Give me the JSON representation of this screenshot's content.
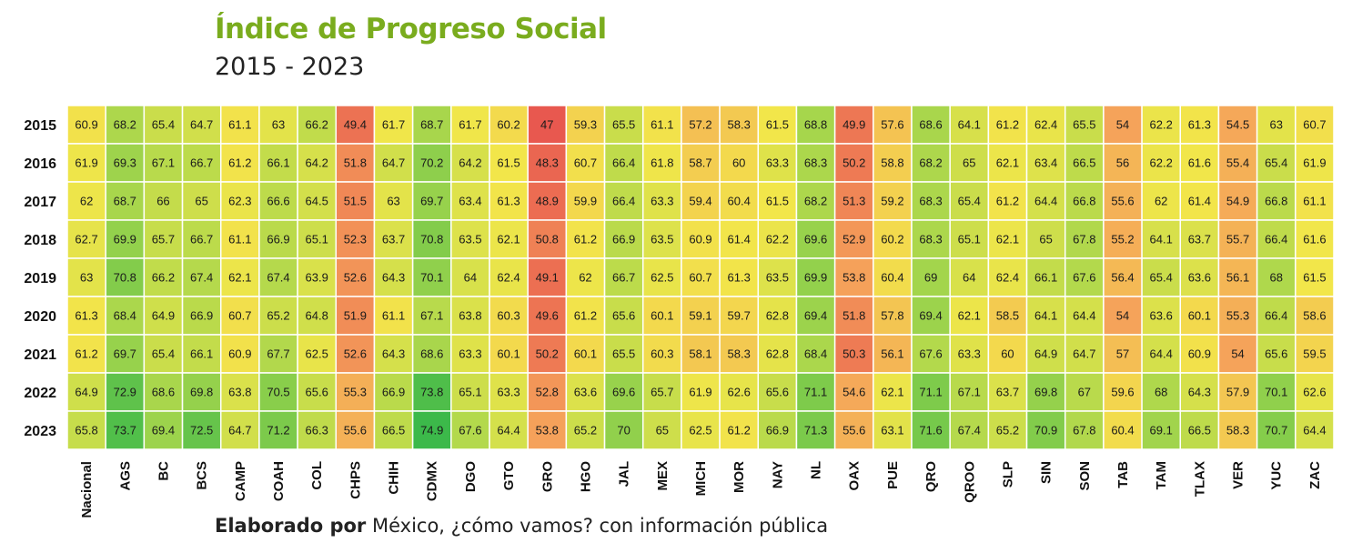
{
  "header": {
    "title": "Índice de Progreso Social",
    "subtitle": "2015 - 2023"
  },
  "footer": {
    "source_bold": "Elaborado por",
    "source_text": " México, ¿cómo vamos? con información pública"
  },
  "chart_data": {
    "type": "heatmap",
    "title": "Índice de Progreso Social",
    "subtitle": "2015 - 2023",
    "rows": [
      "2015",
      "2016",
      "2017",
      "2018",
      "2019",
      "2020",
      "2021",
      "2022",
      "2023"
    ],
    "columns": [
      "Nacional",
      "AGS",
      "BC",
      "BCS",
      "CAMP",
      "COAH",
      "COL",
      "CHPS",
      "CHIH",
      "CDMX",
      "DGO",
      "GTO",
      "GRO",
      "HGO",
      "JAL",
      "MEX",
      "MICH",
      "MOR",
      "NAY",
      "NL",
      "OAX",
      "PUE",
      "QRO",
      "QROO",
      "SLP",
      "SIN",
      "SON",
      "TAB",
      "TAM",
      "TLAX",
      "VER",
      "YUC",
      "ZAC"
    ],
    "values": [
      [
        60.9,
        68.2,
        65.4,
        64.7,
        61.1,
        63,
        66.2,
        49.4,
        61.7,
        68.7,
        61.7,
        60.2,
        47,
        59.3,
        65.5,
        61.1,
        57.2,
        58.3,
        61.5,
        68.8,
        49.9,
        57.6,
        68.6,
        64.1,
        61.2,
        62.4,
        65.5,
        54,
        62.2,
        61.3,
        54.5,
        63,
        60.7
      ],
      [
        61.9,
        69.3,
        67.1,
        66.7,
        61.2,
        66.1,
        64.2,
        51.8,
        64.7,
        70.2,
        64.2,
        61.5,
        48.3,
        60.7,
        66.4,
        61.8,
        58.7,
        60,
        63.3,
        68.3,
        50.2,
        58.8,
        68.2,
        65,
        62.1,
        63.4,
        66.5,
        56,
        62.2,
        61.6,
        55.4,
        65.4,
        61.9
      ],
      [
        62,
        68.7,
        66,
        65,
        62.3,
        66.6,
        64.5,
        51.5,
        63,
        69.7,
        63.4,
        61.3,
        48.9,
        59.9,
        66.4,
        63.3,
        59.4,
        60.4,
        61.5,
        68.2,
        51.3,
        59.2,
        68.3,
        65.4,
        61.2,
        64.4,
        66.8,
        55.6,
        62,
        61.4,
        54.9,
        66.8,
        61.1
      ],
      [
        62.7,
        69.9,
        65.7,
        66.7,
        61.1,
        66.9,
        65.1,
        52.3,
        63.7,
        70.8,
        63.5,
        62.1,
        50.8,
        61.2,
        66.9,
        63.5,
        60.9,
        61.4,
        62.2,
        69.6,
        52.9,
        60.2,
        68.3,
        65.1,
        62.1,
        65,
        67.8,
        55.2,
        64.1,
        63.7,
        55.7,
        66.4,
        61.6
      ],
      [
        63,
        70.8,
        66.2,
        67.4,
        62.1,
        67.4,
        63.9,
        52.6,
        64.3,
        70.1,
        64,
        62.4,
        49.1,
        62,
        66.7,
        62.5,
        60.7,
        61.3,
        63.5,
        69.9,
        53.8,
        60.4,
        69,
        64,
        62.4,
        66.1,
        67.6,
        56.4,
        65.4,
        63.6,
        56.1,
        68,
        61.5
      ],
      [
        61.3,
        68.4,
        64.9,
        66.9,
        60.7,
        65.2,
        64.8,
        51.9,
        61.1,
        67.1,
        63.8,
        60.3,
        49.6,
        61.2,
        65.6,
        60.1,
        59.1,
        59.7,
        62.8,
        69.4,
        51.8,
        57.8,
        69.4,
        62.1,
        58.5,
        64.1,
        64.4,
        54,
        63.6,
        60.1,
        55.3,
        66.4,
        58.6
      ],
      [
        61.2,
        69.7,
        65.4,
        66.1,
        60.9,
        67.7,
        62.5,
        52.6,
        64.3,
        68.6,
        63.3,
        60.1,
        50.2,
        60.1,
        65.5,
        60.3,
        58.1,
        58.3,
        62.8,
        68.4,
        50.3,
        56.1,
        67.6,
        63.3,
        60,
        64.9,
        64.7,
        57,
        64.4,
        60.9,
        54,
        65.6,
        59.5
      ],
      [
        64.9,
        72.9,
        68.6,
        69.8,
        63.8,
        70.5,
        65.6,
        55.3,
        66.9,
        73.8,
        65.1,
        63.3,
        52.8,
        63.6,
        69.6,
        65.7,
        61.9,
        62.6,
        65.6,
        71.1,
        54.6,
        62.1,
        71.1,
        67.1,
        63.7,
        69.8,
        67,
        59.6,
        68,
        64.3,
        57.9,
        70.1,
        62.6
      ],
      [
        65.8,
        73.7,
        69.4,
        72.5,
        64.7,
        71.2,
        66.3,
        55.6,
        66.5,
        74.9,
        67.6,
        64.4,
        53.8,
        65.2,
        70,
        65,
        62.5,
        61.2,
        66.9,
        71.3,
        55.6,
        63.1,
        71.6,
        67.4,
        65.2,
        70.9,
        67.8,
        60.4,
        69.1,
        66.5,
        58.3,
        70.7,
        64.4
      ]
    ],
    "color_scale": {
      "low": "#e8584f",
      "mid_low": "#f5a35a",
      "mid": "#f2e64a",
      "mid_high": "#a7d64c",
      "high": "#3cb94a"
    },
    "legend": "none"
  }
}
